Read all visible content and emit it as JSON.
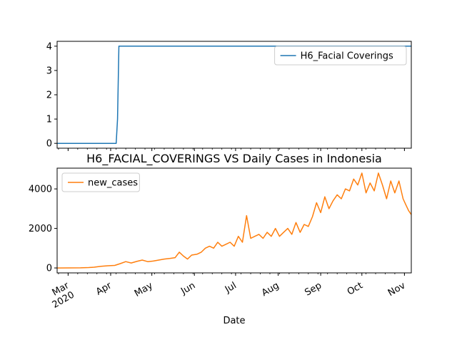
{
  "chart_data": [
    {
      "type": "line",
      "title": "",
      "xlabel": "",
      "ylabel": "",
      "ylim": [
        -0.2,
        4.2
      ],
      "yticks": [
        "0",
        "1",
        "2",
        "3",
        "4"
      ],
      "x_range": [
        "2020-02-22",
        "2020-11-06"
      ],
      "x_tick_labels_visible": false,
      "legend_position": "upper right",
      "series": [
        {
          "name": "H6_Facial Coverings",
          "color": "#1f77b4",
          "points": [
            [
              "2020-02-22",
              0
            ],
            [
              "2020-04-05",
              0
            ],
            [
              "2020-04-06",
              1
            ],
            [
              "2020-04-07",
              4
            ],
            [
              "2020-11-06",
              4
            ]
          ]
        }
      ]
    },
    {
      "type": "line",
      "title": "H6_FACIAL_COVERINGS VS Daily Cases in Indonesia",
      "xlabel": "Date",
      "ylabel": "",
      "ylim": [
        -250,
        5050
      ],
      "yticks": [
        "0",
        "2000",
        "4000"
      ],
      "x_range": [
        "2020-02-22",
        "2020-11-06"
      ],
      "x_tick_labels": [
        {
          "date": "2020-03-01",
          "label": "Mar",
          "sublabel": "2020"
        },
        {
          "date": "2020-04-01",
          "label": "Apr"
        },
        {
          "date": "2020-05-01",
          "label": "May"
        },
        {
          "date": "2020-06-01",
          "label": "Jun"
        },
        {
          "date": "2020-07-01",
          "label": "Jul"
        },
        {
          "date": "2020-08-01",
          "label": "Aug"
        },
        {
          "date": "2020-09-01",
          "label": "Sep"
        },
        {
          "date": "2020-10-01",
          "label": "Oct"
        },
        {
          "date": "2020-11-01",
          "label": "Nov"
        }
      ],
      "legend_position": "upper left",
      "series": [
        {
          "name": "new_cases",
          "color": "#ff7f0e",
          "points": [
            [
              "2020-02-22",
              0
            ],
            [
              "2020-03-02",
              2
            ],
            [
              "2020-03-10",
              5
            ],
            [
              "2020-03-16",
              20
            ],
            [
              "2020-03-20",
              40
            ],
            [
              "2020-03-25",
              80
            ],
            [
              "2020-03-30",
              110
            ],
            [
              "2020-04-04",
              130
            ],
            [
              "2020-04-08",
              220
            ],
            [
              "2020-04-12",
              320
            ],
            [
              "2020-04-16",
              250
            ],
            [
              "2020-04-20",
              330
            ],
            [
              "2020-04-24",
              400
            ],
            [
              "2020-04-28",
              320
            ],
            [
              "2020-05-02",
              350
            ],
            [
              "2020-05-06",
              400
            ],
            [
              "2020-05-10",
              450
            ],
            [
              "2020-05-14",
              480
            ],
            [
              "2020-05-18",
              520
            ],
            [
              "2020-05-21",
              800
            ],
            [
              "2020-05-24",
              600
            ],
            [
              "2020-05-27",
              450
            ],
            [
              "2020-05-30",
              650
            ],
            [
              "2020-06-03",
              700
            ],
            [
              "2020-06-06",
              800
            ],
            [
              "2020-06-09",
              1000
            ],
            [
              "2020-06-12",
              1100
            ],
            [
              "2020-06-15",
              1000
            ],
            [
              "2020-06-18",
              1300
            ],
            [
              "2020-06-21",
              1100
            ],
            [
              "2020-06-24",
              1200
            ],
            [
              "2020-06-27",
              1300
            ],
            [
              "2020-06-30",
              1100
            ],
            [
              "2020-07-03",
              1600
            ],
            [
              "2020-07-06",
              1300
            ],
            [
              "2020-07-09",
              2650
            ],
            [
              "2020-07-12",
              1500
            ],
            [
              "2020-07-15",
              1600
            ],
            [
              "2020-07-18",
              1700
            ],
            [
              "2020-07-21",
              1500
            ],
            [
              "2020-07-24",
              1800
            ],
            [
              "2020-07-27",
              1600
            ],
            [
              "2020-07-30",
              2000
            ],
            [
              "2020-08-02",
              1600
            ],
            [
              "2020-08-05",
              1800
            ],
            [
              "2020-08-08",
              2000
            ],
            [
              "2020-08-11",
              1700
            ],
            [
              "2020-08-14",
              2300
            ],
            [
              "2020-08-17",
              1800
            ],
            [
              "2020-08-20",
              2200
            ],
            [
              "2020-08-23",
              2100
            ],
            [
              "2020-08-26",
              2600
            ],
            [
              "2020-08-29",
              3300
            ],
            [
              "2020-09-01",
              2800
            ],
            [
              "2020-09-04",
              3600
            ],
            [
              "2020-09-07",
              3000
            ],
            [
              "2020-09-10",
              3400
            ],
            [
              "2020-09-13",
              3700
            ],
            [
              "2020-09-16",
              3500
            ],
            [
              "2020-09-19",
              4000
            ],
            [
              "2020-09-22",
              3900
            ],
            [
              "2020-09-25",
              4500
            ],
            [
              "2020-09-28",
              4200
            ],
            [
              "2020-10-01",
              4800
            ],
            [
              "2020-10-04",
              3800
            ],
            [
              "2020-10-07",
              4300
            ],
            [
              "2020-10-10",
              3900
            ],
            [
              "2020-10-13",
              4800
            ],
            [
              "2020-10-16",
              4200
            ],
            [
              "2020-10-19",
              3500
            ],
            [
              "2020-10-22",
              4400
            ],
            [
              "2020-10-25",
              3800
            ],
            [
              "2020-10-28",
              4400
            ],
            [
              "2020-10-31",
              3500
            ],
            [
              "2020-11-02",
              3200
            ],
            [
              "2020-11-04",
              2900
            ],
            [
              "2020-11-06",
              2700
            ]
          ]
        }
      ]
    }
  ]
}
